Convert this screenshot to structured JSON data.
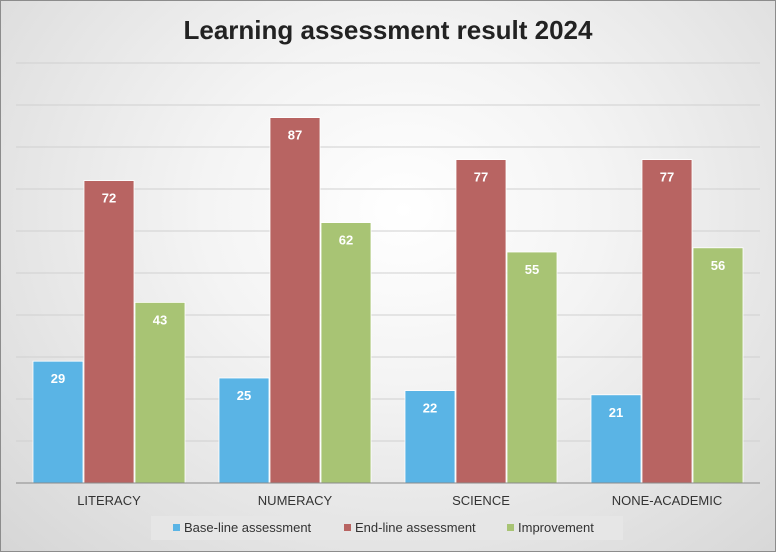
{
  "chart_data": {
    "type": "bar",
    "title": "Learning assessment result 2024",
    "xlabel": "",
    "ylabel": "",
    "categories": [
      "LITERACY",
      "NUMERACY",
      "SCIENCE",
      "NONE-ACADEMIC"
    ],
    "series": [
      {
        "name": "Base-line assessment",
        "values": [
          29,
          25,
          22,
          21
        ],
        "color": "#5ab4e5"
      },
      {
        "name": "End-line assessment",
        "values": [
          72,
          87,
          77,
          77
        ],
        "color": "#b86462"
      },
      {
        "name": "Improvement",
        "values": [
          43,
          62,
          55,
          56
        ],
        "color": "#a8c474"
      }
    ],
    "ylim": [
      0,
      100
    ],
    "grid": true,
    "y_axis_labels_shown": false,
    "data_labels": true,
    "legend_position": "bottom"
  }
}
